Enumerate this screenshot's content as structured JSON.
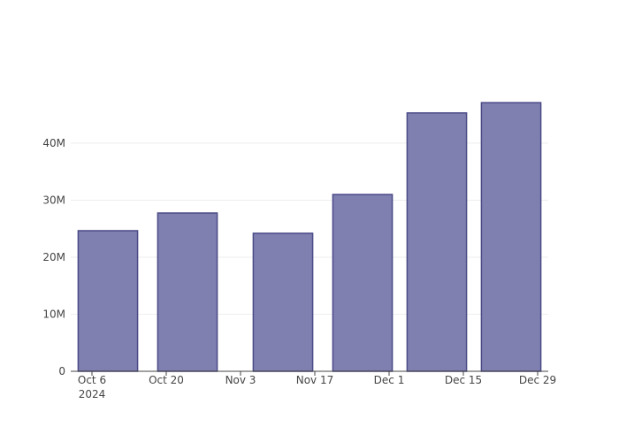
{
  "chart_data": {
    "type": "bar",
    "x": [
      "2024-10-09",
      "2024-10-24",
      "2024-11-11",
      "2024-11-26",
      "2024-12-10",
      "2024-12-24"
    ],
    "values": [
      24650000,
      27750000,
      24200000,
      31000000,
      45300000,
      47100000
    ],
    "color": "#7f7fb0",
    "edge_color": "#4b4b88",
    "xlim": [
      "2024-10-02",
      "2024-12-31"
    ],
    "xticks": [
      {
        "value": "2024-10-06",
        "label": "Oct 6\n2024"
      },
      {
        "value": "2024-10-20",
        "label": "Oct 20"
      },
      {
        "value": "2024-11-03",
        "label": "Nov 3"
      },
      {
        "value": "2024-11-17",
        "label": "Nov 17"
      },
      {
        "value": "2024-12-01",
        "label": "Dec 1"
      },
      {
        "value": "2024-12-15",
        "label": "Dec 15"
      },
      {
        "value": "2024-12-29",
        "label": "Dec 29"
      }
    ],
    "ylim": [
      0,
      49600000
    ],
    "yticks": [
      0,
      {
        "value": 10000000,
        "label": "10M"
      },
      {
        "value": 20000000,
        "label": "20M"
      },
      {
        "value": 30000000,
        "label": "30M"
      },
      {
        "value": 40000000,
        "label": "40M"
      }
    ],
    "grid": true
  }
}
